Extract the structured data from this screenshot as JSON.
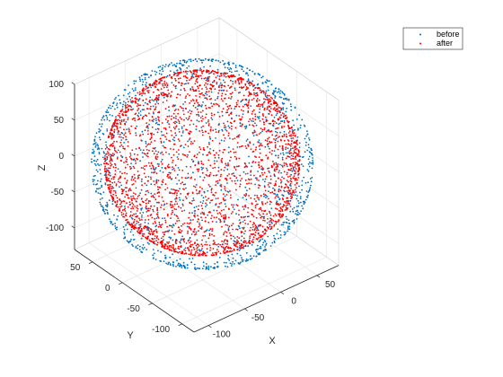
{
  "chart_data": {
    "type": "scatter3d",
    "xlabel": "X",
    "ylabel": "Y",
    "zlabel": "Z",
    "x_ticks": [
      -100,
      -50,
      0,
      50
    ],
    "y_ticks": [
      -100,
      -50,
      0,
      50
    ],
    "z_ticks": [
      -100,
      -50,
      0,
      50,
      100
    ],
    "xlim": [
      -120,
      80
    ],
    "ylim": [
      -120,
      80
    ],
    "zlim": [
      -130,
      100
    ],
    "grid": true,
    "legend_placement": "top-right",
    "series": [
      {
        "name": "before",
        "color": "#0072BD",
        "shape": "sphere",
        "center": [
          -17,
          -9,
          -8
        ],
        "radius": 118,
        "z_stretch": 1.0,
        "pole_spread": 1.35,
        "count": 1500
      },
      {
        "name": "after",
        "color": "#FF0000",
        "shape": "sphere",
        "center": [
          -17,
          -9,
          -6
        ],
        "radius": 104,
        "z_stretch": 1.0,
        "pole_spread": 1.0,
        "count": 2600
      }
    ]
  }
}
